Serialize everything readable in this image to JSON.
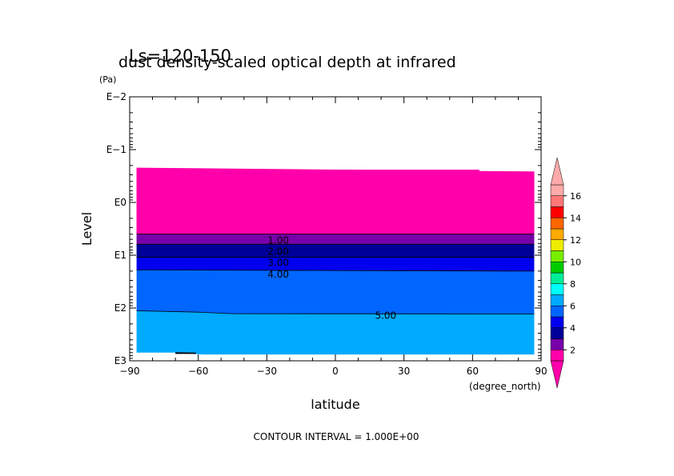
{
  "chart_data": {
    "type": "heatmap",
    "title": "dust density-scaled optical depth at infrared",
    "subtitle": "Ls=120-150",
    "xlabel": "latitude",
    "ylabel": "Level",
    "x_unit": "(degree_north)",
    "y_unit": "(Pa)",
    "xlim": [
      -90,
      90
    ],
    "ylim": [
      1000,
      0.01
    ],
    "y_scale": "log",
    "x_ticks": [
      -90,
      -60,
      -30,
      0,
      30,
      60,
      90
    ],
    "x_tick_labels": [
      "−90",
      "−60",
      "−30",
      "0",
      "30",
      "60",
      "90"
    ],
    "y_ticks": [
      0.01,
      0.1,
      1,
      10,
      100,
      1000
    ],
    "y_tick_labels": [
      "E−2",
      "E−1",
      "E0",
      "E1",
      "E2",
      "E3"
    ],
    "footer": "CONTOUR INTERVAL = 1.000E+00",
    "contour_labels": [
      {
        "text": "1.00",
        "lat": -25,
        "level": 5.2
      },
      {
        "text": "2.00",
        "lat": -25,
        "level": 8.5
      },
      {
        "text": "3.00",
        "lat": -25,
        "level": 14
      },
      {
        "text": "4.00",
        "lat": -25,
        "level": 23
      },
      {
        "text": "5.00",
        "lat": 22,
        "level": 140
      }
    ],
    "data_lat_range": [
      -87,
      87
    ],
    "top_boundary": [
      [
        -87,
        0.22
      ],
      [
        -81,
        0.23
      ],
      [
        -58,
        0.26
      ],
      [
        3,
        0.26
      ],
      [
        3,
        0.24
      ],
      [
        63,
        0.24
      ],
      [
        63,
        0.26
      ],
      [
        87,
        0.26
      ]
    ],
    "bottom_boundary": [
      [
        -87,
        700
      ],
      [
        -70,
        700
      ],
      [
        -58,
        760
      ],
      [
        87,
        760
      ]
    ],
    "bands": [
      {
        "range": "0-1",
        "color": "#FF00AA",
        "top": [
          [
            -87,
            0.22
          ],
          [
            87,
            0.26
          ]
        ],
        "bottom": [
          [
            -87,
            4.0
          ],
          [
            87,
            4.0
          ]
        ]
      },
      {
        "range": "1-2",
        "color": "#7700AA",
        "top": [
          [
            -87,
            4.0
          ],
          [
            87,
            4.0
          ]
        ],
        "bottom": [
          [
            -87,
            6.2
          ],
          [
            87,
            6.2
          ]
        ]
      },
      {
        "range": "2-3",
        "color": "#000099",
        "top": [
          [
            -87,
            6.2
          ],
          [
            87,
            6.2
          ]
        ],
        "bottom": [
          [
            -87,
            11
          ],
          [
            87,
            11
          ]
        ]
      },
      {
        "range": "3-4",
        "color": "#0000EE",
        "top": [
          [
            -87,
            11
          ],
          [
            87,
            11
          ]
        ],
        "bottom": [
          [
            -87,
            19
          ],
          [
            87,
            20
          ]
        ]
      },
      {
        "range": "4-5",
        "color": "#0066FF",
        "top": [
          [
            -87,
            19
          ],
          [
            87,
            20
          ]
        ],
        "bottom": [
          [
            -87,
            113
          ],
          [
            -60,
            120
          ],
          [
            -45,
            128
          ],
          [
            87,
            130
          ]
        ]
      },
      {
        "range": "5-6",
        "color": "#00AAFF",
        "top": [
          [
            -87,
            113
          ],
          [
            -60,
            120
          ],
          [
            -45,
            128
          ],
          [
            87,
            130
          ]
        ],
        "bottom": [
          [
            -87,
            700
          ],
          [
            -70,
            700
          ],
          [
            -58,
            760
          ],
          [
            87,
            760
          ]
        ]
      }
    ],
    "colorbar": {
      "labels": [
        "2",
        "4",
        "6",
        "8",
        "10",
        "12",
        "14",
        "16"
      ],
      "colors": [
        "#FF00AA",
        "#7700AA",
        "#000099",
        "#0000EE",
        "#0066FF",
        "#00AAFF",
        "#00FFFF",
        "#00EE99",
        "#00CC00",
        "#77EE00",
        "#EEEE00",
        "#FFAA00",
        "#FF6600",
        "#FF0000",
        "#FF7777",
        "#FFAAAA"
      ]
    },
    "grid": false,
    "legend": "right"
  }
}
